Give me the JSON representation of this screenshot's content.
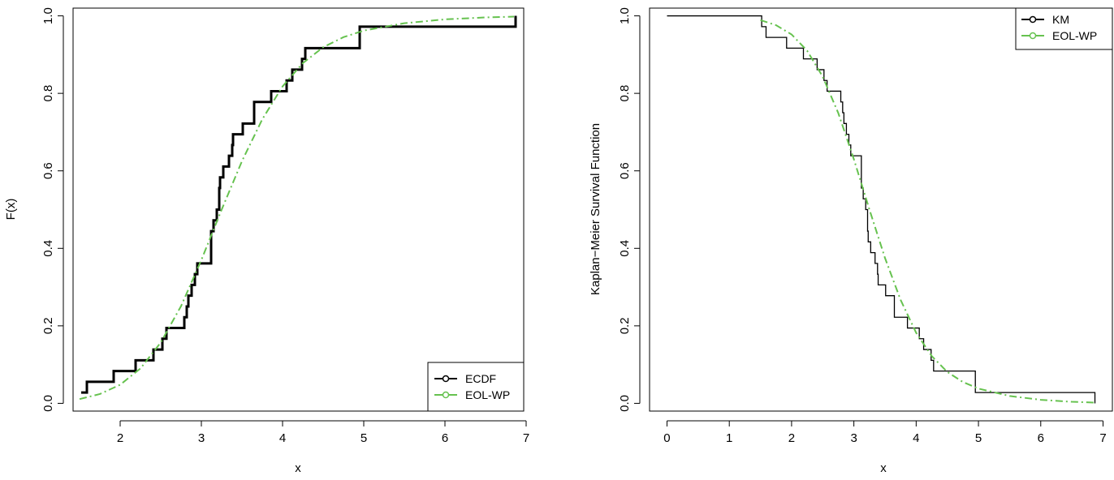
{
  "chart_data": [
    {
      "type": "line",
      "xlabel": "x",
      "ylabel": "F(x)",
      "xlim": [
        1.42,
        6.97
      ],
      "ylim": [
        -0.02,
        1.02
      ],
      "x_ticks": [
        2,
        3,
        4,
        5,
        6,
        7
      ],
      "y_ticks": [
        0.0,
        0.2,
        0.4,
        0.6,
        0.8,
        1.0
      ],
      "grid": false,
      "legend_position": "bottom-right",
      "legend": [
        "ECDF",
        "EOL-WP"
      ],
      "colors": {
        "ECDF": "#000000",
        "EOL-WP": "#66c24f"
      },
      "series": [
        {
          "name": "ECDF",
          "kind": "step",
          "x": [
            1.52,
            1.59,
            1.92,
            2.19,
            2.41,
            2.52,
            2.57,
            2.79,
            2.82,
            2.84,
            2.88,
            2.92,
            2.95,
            3.12,
            3.15,
            3.19,
            3.22,
            3.23,
            3.27,
            3.34,
            3.38,
            3.39,
            3.51,
            3.65,
            3.86,
            4.05,
            4.12,
            4.24,
            4.28,
            4.95,
            6.87
          ],
          "y": [
            0.0278,
            0.0556,
            0.0833,
            0.1111,
            0.1389,
            0.1667,
            0.1944,
            0.2222,
            0.25,
            0.2778,
            0.3056,
            0.3333,
            0.3611,
            0.4444,
            0.4722,
            0.5,
            0.5556,
            0.5833,
            0.6111,
            0.6389,
            0.6667,
            0.6944,
            0.7222,
            0.7778,
            0.8056,
            0.8333,
            0.8611,
            0.8889,
            0.9167,
            0.9722,
            1.0
          ]
        },
        {
          "name": "EOL-WP",
          "kind": "curve",
          "x": [
            1.5,
            1.75,
            2.0,
            2.25,
            2.5,
            2.75,
            3.0,
            3.25,
            3.5,
            3.75,
            4.0,
            4.25,
            4.5,
            4.75,
            5.0,
            5.5,
            6.0,
            6.5,
            6.85
          ],
          "y": [
            0.011,
            0.024,
            0.048,
            0.09,
            0.157,
            0.251,
            0.37,
            0.5,
            0.625,
            0.733,
            0.818,
            0.878,
            0.919,
            0.945,
            0.962,
            0.981,
            0.991,
            0.996,
            0.998
          ]
        }
      ]
    },
    {
      "type": "line",
      "xlabel": "x",
      "ylabel": "Kaplan−Meier Survival Function",
      "xlim": [
        -0.28,
        7.15
      ],
      "ylim": [
        -0.02,
        1.02
      ],
      "x_ticks": [
        0,
        1,
        2,
        3,
        4,
        5,
        6,
        7
      ],
      "y_ticks": [
        0.0,
        0.2,
        0.4,
        0.6,
        0.8,
        1.0
      ],
      "grid": false,
      "legend_position": "top-right",
      "legend": [
        "KM",
        "EOL-WP"
      ],
      "colors": {
        "KM": "#000000",
        "EOL-WP": "#66c24f"
      },
      "series": [
        {
          "name": "KM",
          "kind": "step",
          "x": [
            0,
            1.52,
            1.59,
            1.92,
            2.19,
            2.41,
            2.52,
            2.57,
            2.79,
            2.82,
            2.84,
            2.88,
            2.92,
            2.95,
            3.12,
            3.15,
            3.19,
            3.22,
            3.23,
            3.27,
            3.34,
            3.38,
            3.39,
            3.51,
            3.65,
            3.86,
            4.05,
            4.12,
            4.24,
            4.28,
            4.95,
            6.87
          ],
          "y": [
            1.0,
            0.9722,
            0.9444,
            0.9167,
            0.8889,
            0.8611,
            0.8333,
            0.8056,
            0.7778,
            0.75,
            0.7222,
            0.6944,
            0.6667,
            0.6389,
            0.5556,
            0.5278,
            0.5,
            0.4444,
            0.4167,
            0.3889,
            0.3611,
            0.3333,
            0.3056,
            0.2778,
            0.2222,
            0.1944,
            0.1667,
            0.1389,
            0.1111,
            0.0833,
            0.0278,
            0.0
          ]
        },
        {
          "name": "EOL-WP",
          "kind": "curve",
          "x": [
            1.5,
            1.75,
            2.0,
            2.25,
            2.5,
            2.75,
            3.0,
            3.25,
            3.5,
            3.75,
            4.0,
            4.25,
            4.5,
            4.75,
            5.0,
            5.5,
            6.0,
            6.5,
            6.85
          ],
          "y": [
            0.989,
            0.976,
            0.952,
            0.91,
            0.843,
            0.749,
            0.63,
            0.5,
            0.375,
            0.267,
            0.182,
            0.122,
            0.081,
            0.055,
            0.038,
            0.019,
            0.009,
            0.004,
            0.002
          ]
        }
      ]
    }
  ]
}
